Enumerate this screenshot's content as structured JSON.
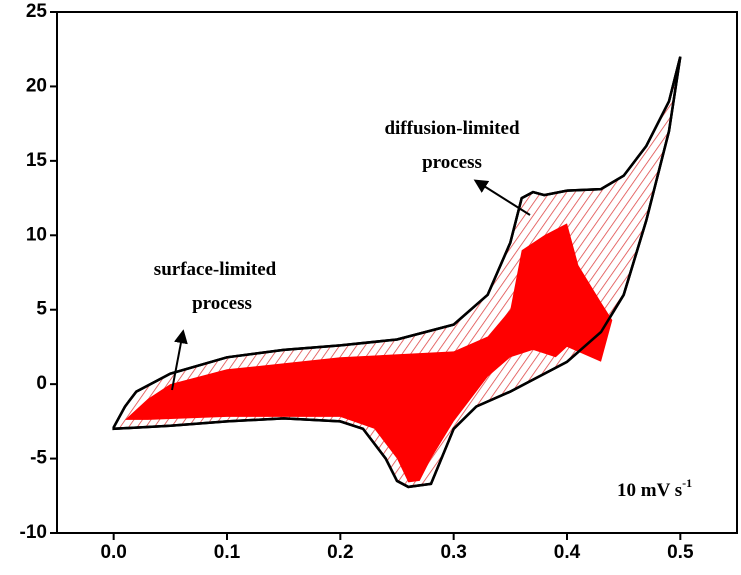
{
  "chart_data": {
    "type": "area",
    "xlim": [
      -0.05,
      0.55
    ],
    "xticks": [
      {
        "value": 0,
        "label": "0.0"
      },
      0.1,
      0.2,
      0.3,
      0.4,
      0.5
    ],
    "ylim": [
      -10,
      25
    ],
    "yticks": [
      -10,
      -5,
      0,
      5,
      10,
      15,
      20,
      25
    ],
    "grid": false,
    "series": [
      {
        "color": "#000000",
        "hatch": "#e04848",
        "x": [
          0.0,
          0.01,
          0.02,
          0.05,
          0.1,
          0.15,
          0.2,
          0.25,
          0.3,
          0.33,
          0.35,
          0.36,
          0.37,
          0.38,
          0.4,
          0.43,
          0.45,
          0.47,
          0.49,
          0.5,
          0.49,
          0.47,
          0.45,
          0.43,
          0.4,
          0.35,
          0.32,
          0.3,
          0.28,
          0.26,
          0.25,
          0.24,
          0.22,
          0.2,
          0.15,
          0.1,
          0.05,
          0.0
        ],
        "values": [
          -2.9,
          -1.5,
          -0.5,
          0.7,
          1.8,
          2.3,
          2.6,
          3.0,
          4.0,
          6.0,
          9.5,
          12.5,
          12.9,
          12.7,
          13.0,
          13.1,
          14.0,
          16.0,
          19.0,
          22.0,
          17.0,
          11.0,
          6.0,
          3.5,
          1.5,
          -0.5,
          -1.5,
          -3.0,
          -6.7,
          -6.9,
          -6.5,
          -5.0,
          -3.0,
          -2.5,
          -2.3,
          -2.5,
          -2.8,
          -3.0
        ]
      },
      {
        "color": "#ff0000",
        "x": [
          0.01,
          0.03,
          0.05,
          0.1,
          0.2,
          0.3,
          0.33,
          0.35,
          0.36,
          0.38,
          0.4,
          0.41,
          0.43,
          0.44,
          0.43,
          0.4,
          0.39,
          0.37,
          0.35,
          0.33,
          0.3,
          0.28,
          0.27,
          0.26,
          0.25,
          0.23,
          0.2,
          0.1,
          0.03
        ],
        "values": [
          -2.4,
          -1.0,
          0.0,
          1.0,
          1.8,
          2.2,
          3.2,
          5.0,
          9.0,
          10.0,
          10.8,
          8.0,
          5.5,
          4.3,
          1.5,
          2.5,
          1.8,
          2.3,
          1.8,
          0.5,
          -2.5,
          -5.0,
          -6.5,
          -6.6,
          -5.0,
          -3.0,
          -2.2,
          -2.2,
          -2.4
        ]
      }
    ],
    "annotations": [
      {
        "lines": [
          "diffusion-limited",
          "process"
        ]
      },
      {
        "lines": [
          "surface-limited",
          "process"
        ]
      },
      {
        "text": "10 mV s",
        "sup": "-1"
      }
    ]
  }
}
